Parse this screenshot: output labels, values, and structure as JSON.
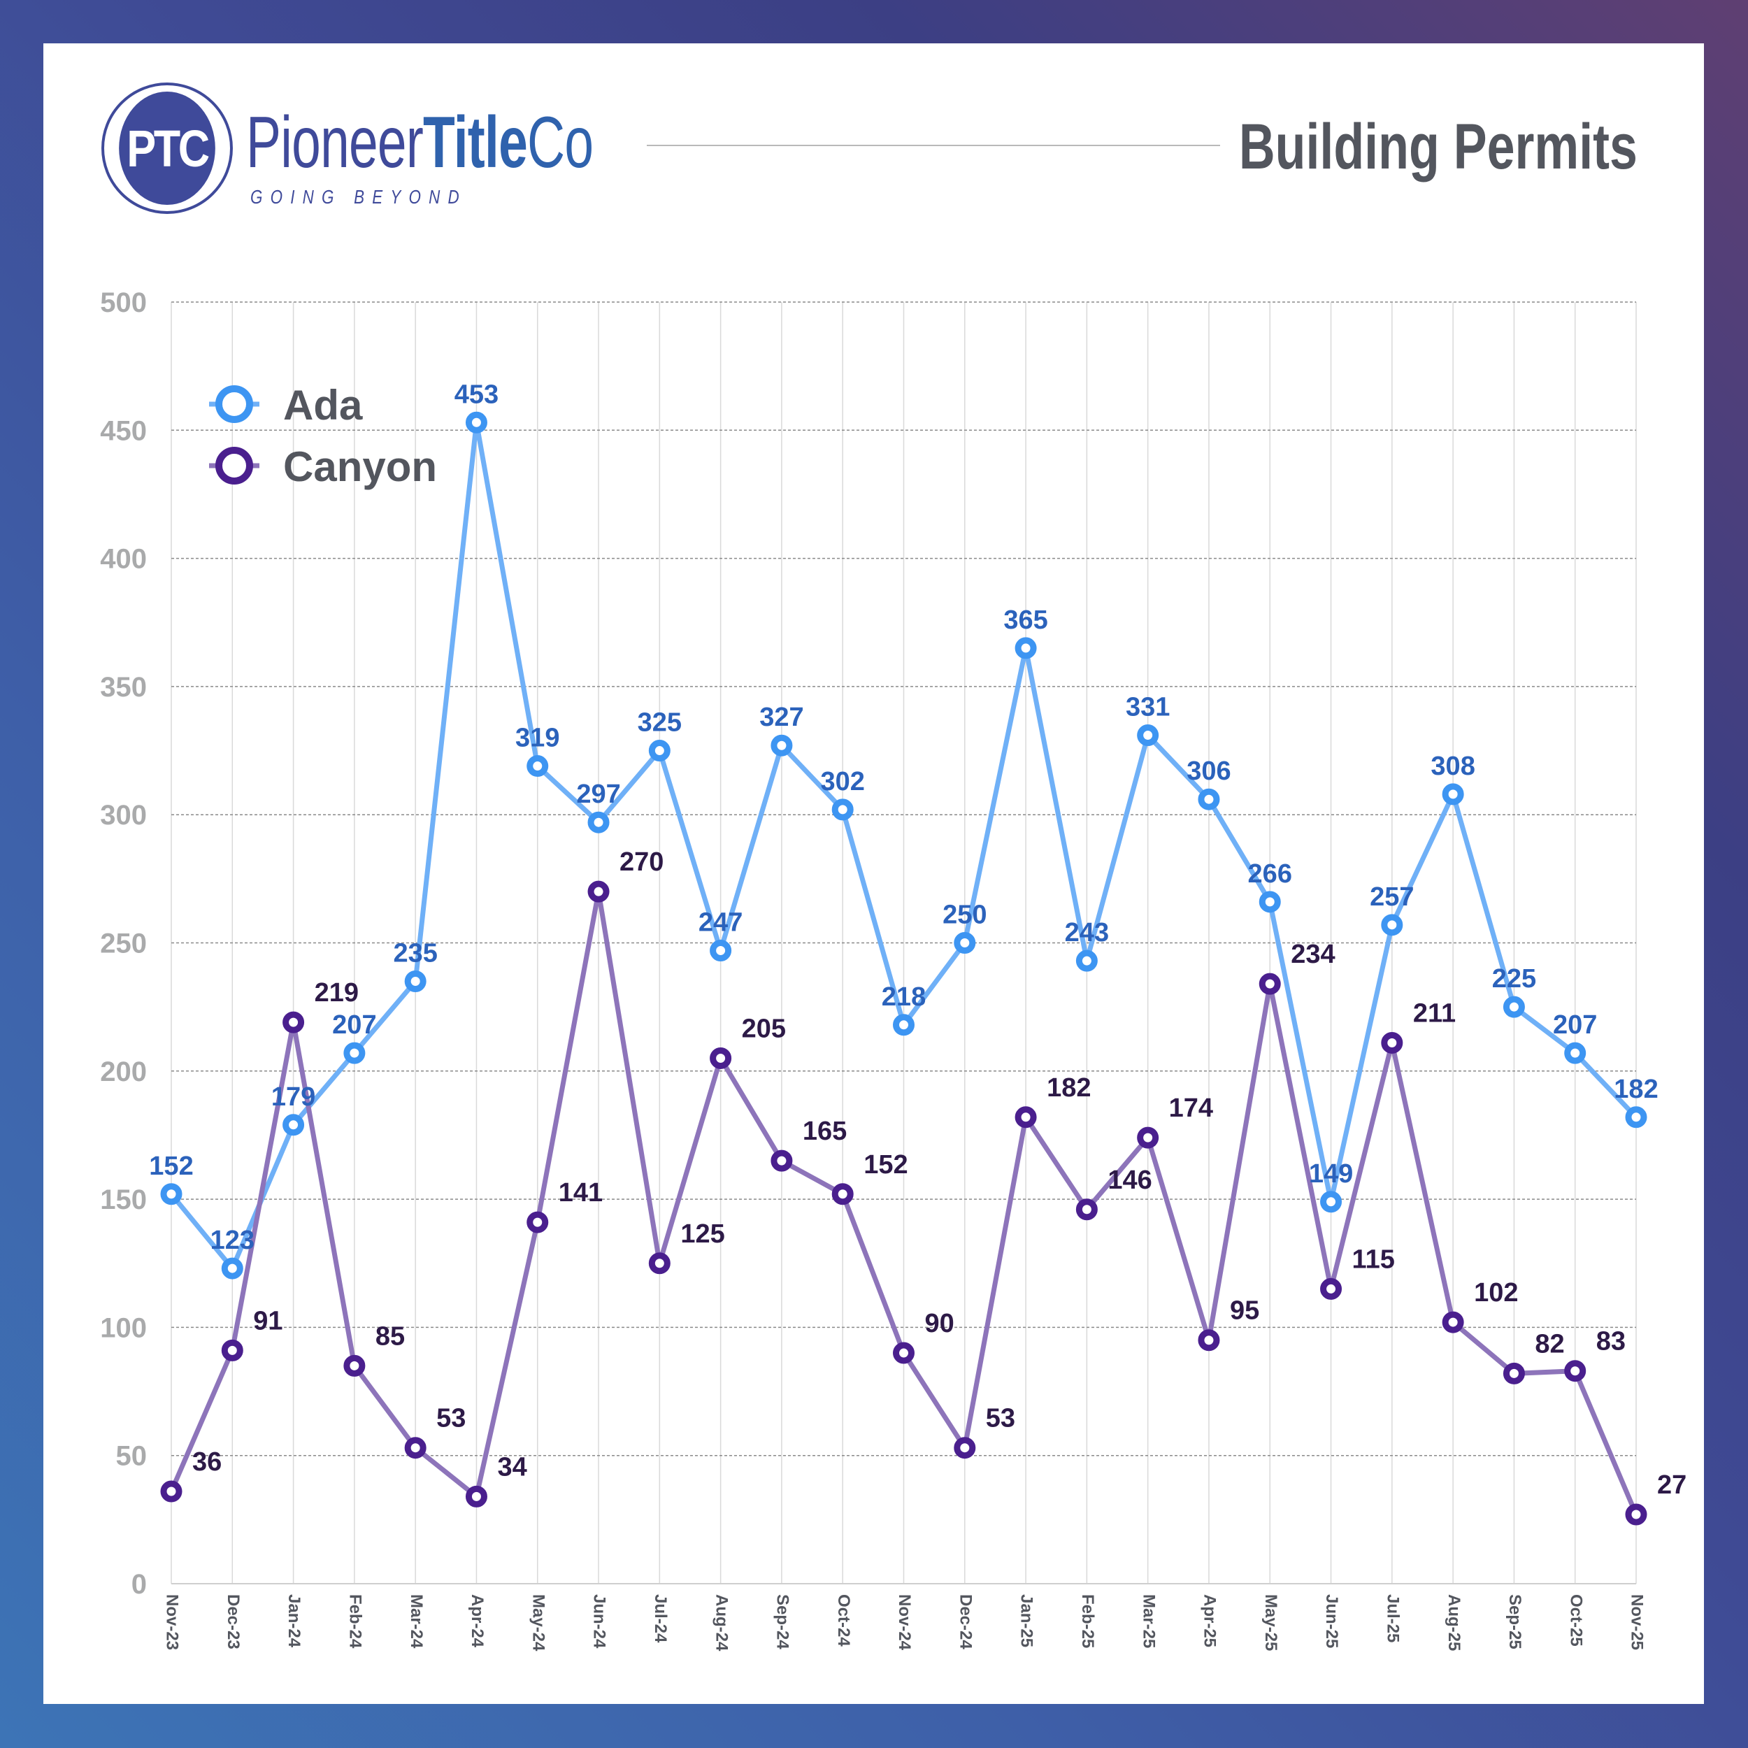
{
  "brand": {
    "logo_monogram": "PTC",
    "name_part1": "Pioneer",
    "name_part2": "Title",
    "name_part3": "Co",
    "tagline": "GOING BEYOND"
  },
  "header": {
    "title": "Building Permits"
  },
  "colors": {
    "ada_line": "#6fb0f7",
    "ada_marker": "#3d95f2",
    "ada_label": "#2b62bb",
    "canyon_line": "#8d74ba",
    "canyon_marker": "#4a1f8e",
    "canyon_label": "#2d1a47",
    "grid": "#d9d9d9",
    "axis_text": "#a9aaab"
  },
  "chart_data": {
    "type": "line",
    "title": "Building Permits",
    "xlabel": "",
    "ylabel": "",
    "ylim": [
      0,
      500
    ],
    "yticks": [
      0,
      50,
      100,
      150,
      200,
      250,
      300,
      350,
      400,
      450,
      500
    ],
    "grid": true,
    "legend_position": "top-left",
    "categories": [
      "Nov-23",
      "Dec-23",
      "Jan-24",
      "Feb-24",
      "Mar-24",
      "Apr-24",
      "May-24",
      "Jun-24",
      "Jul-24",
      "Aug-24",
      "Sep-24",
      "Oct-24",
      "Nov-24",
      "Dec-24",
      "Jan-25",
      "Feb-25",
      "Mar-25",
      "Apr-25",
      "May-25",
      "Jun-25",
      "Jul-25",
      "Aug-25",
      "Sep-25",
      "Oct-25",
      "Nov-25"
    ],
    "series": [
      {
        "name": "Ada",
        "values": [
          152,
          123,
          179,
          207,
          235,
          453,
          319,
          297,
          325,
          247,
          327,
          302,
          218,
          250,
          365,
          243,
          331,
          306,
          266,
          149,
          257,
          308,
          225,
          207,
          182
        ]
      },
      {
        "name": "Canyon",
        "values": [
          36,
          91,
          219,
          85,
          53,
          34,
          141,
          270,
          125,
          205,
          165,
          152,
          90,
          53,
          182,
          146,
          174,
          95,
          234,
          115,
          211,
          102,
          82,
          83,
          27
        ]
      }
    ]
  }
}
